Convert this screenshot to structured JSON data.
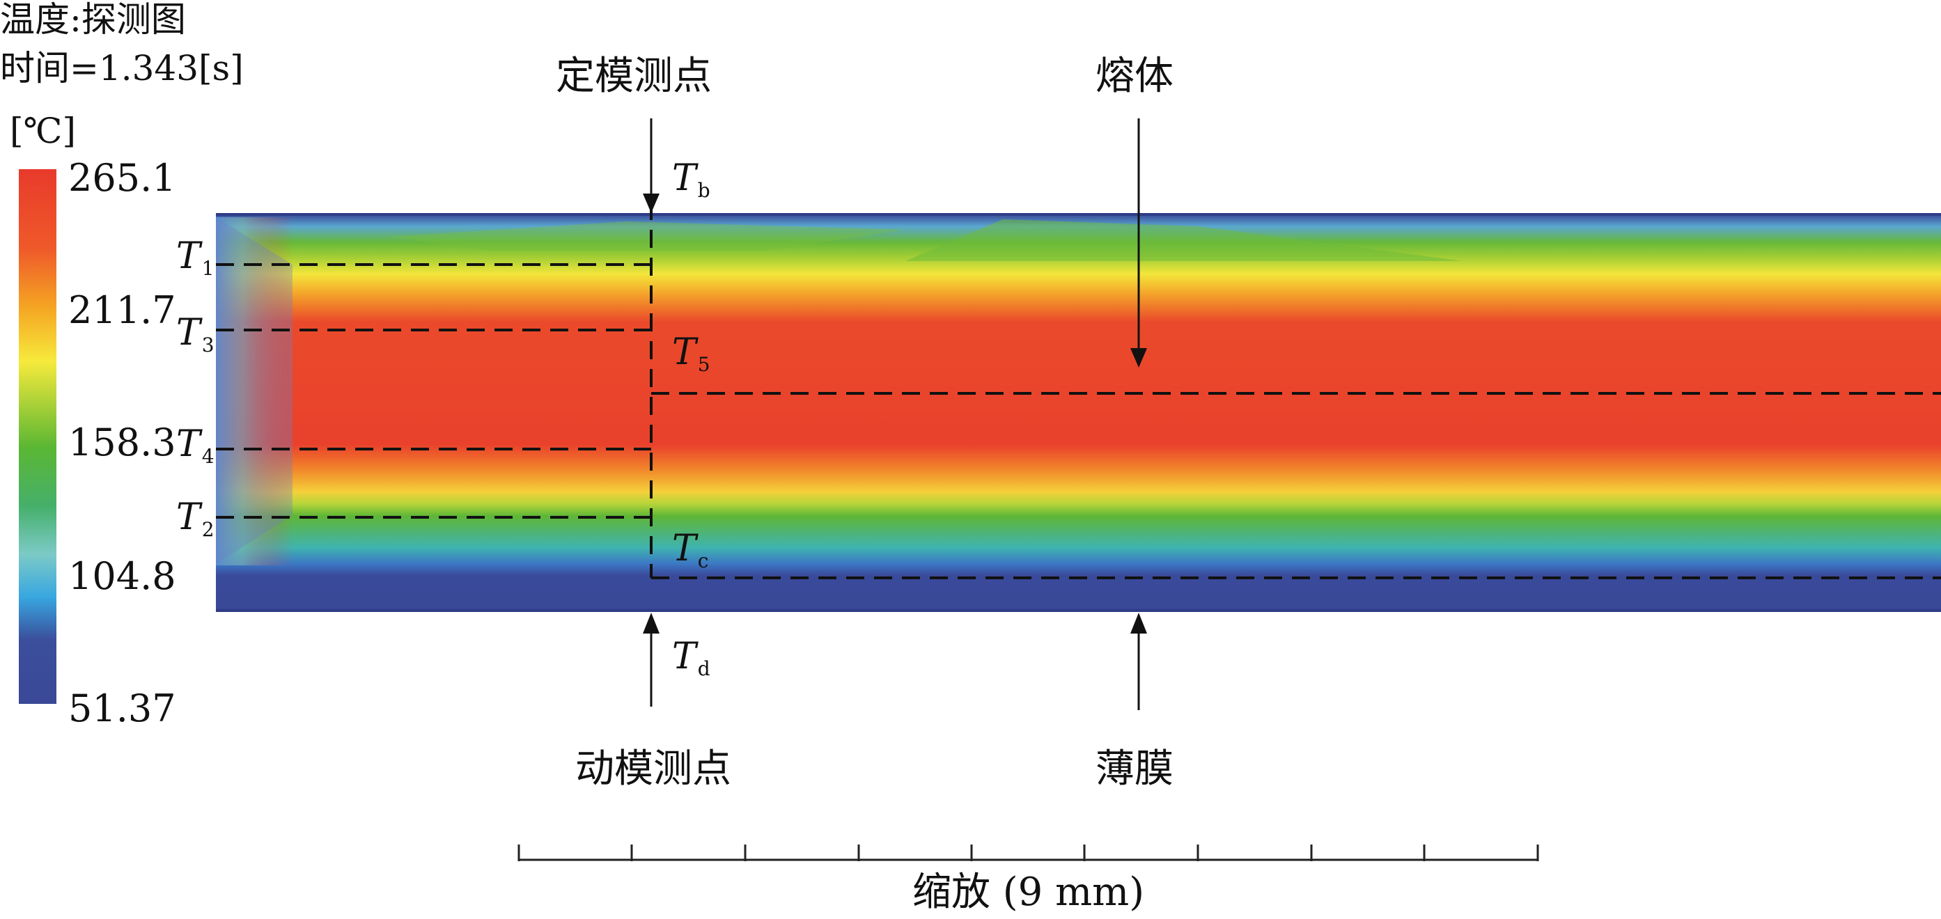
{
  "header": {
    "title": "温度:探测图",
    "time": "时间=1.343[s]"
  },
  "colorbar": {
    "unit": "[℃]",
    "ticks": [
      "265.1",
      "211.7",
      "158.3",
      "104.8",
      "51.37"
    ],
    "colors": [
      "#e83a2b",
      "#f27a24",
      "#f5e53a",
      "#55b331",
      "#7ec9c4",
      "#3aa9e0",
      "#3a4a98"
    ]
  },
  "points": {
    "fixed_mold": "定模测点",
    "moving_mold": "动模测点",
    "melt": "熔体",
    "film": "薄膜"
  },
  "probes": [
    {
      "letter": "T",
      "sub": "1"
    },
    {
      "letter": "T",
      "sub": "3"
    },
    {
      "letter": "T",
      "sub": "4"
    },
    {
      "letter": "T",
      "sub": "2"
    },
    {
      "letter": "T",
      "sub": "b"
    },
    {
      "letter": "T",
      "sub": "5"
    },
    {
      "letter": "T",
      "sub": "c"
    },
    {
      "letter": "T",
      "sub": "d"
    }
  ],
  "scale": {
    "label": "缩放 (9 mm)",
    "divisions": 9
  }
}
